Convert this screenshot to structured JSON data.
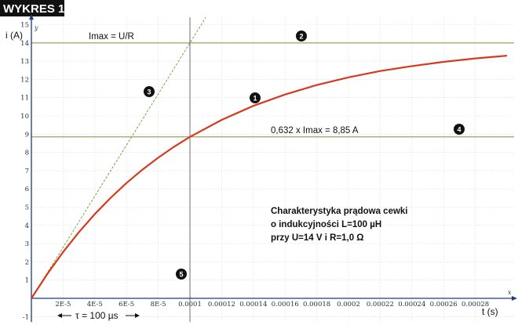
{
  "badge": "WYKRES 1",
  "chart_data": {
    "type": "line",
    "xlabel": "t (s)",
    "ylabel": "i (A)",
    "x_axis_letter": "x",
    "y_axis_letter": "y",
    "xlim": [
      0,
      0.0003
    ],
    "ylim": [
      -1.3,
      15.4
    ],
    "x_ticks": [
      2e-05,
      4e-05,
      6e-05,
      8e-05,
      0.0001,
      0.00012,
      0.00014,
      0.00016,
      0.00018,
      0.0002,
      0.00022,
      0.00024,
      0.00026,
      0.00028
    ],
    "x_tick_labels": [
      "2E-5",
      "4E-5",
      "6E-5",
      "8E-5",
      "0.0001",
      "0.00012",
      "0.00014",
      "0.00016",
      "0.00018",
      "0.0002",
      "0.00022",
      "0.00024",
      "0.00026",
      "0.00028"
    ],
    "y_ticks": [
      -1,
      1,
      2,
      3,
      4,
      5,
      6,
      7,
      8,
      9,
      10,
      11,
      12,
      13,
      14,
      15
    ],
    "y_tick_labels": [
      "-1",
      "1",
      "2",
      "3",
      "4",
      "5",
      "6",
      "7",
      "8",
      "9",
      "10",
      "11",
      "12",
      "13",
      "14",
      "15"
    ],
    "grid": true,
    "params": {
      "U": 14,
      "R": 1.0,
      "L": 0.0001,
      "tau": 0.0001
    },
    "series": [
      {
        "x": [
          0,
          1e-05,
          2e-05,
          3e-05,
          4e-05,
          5e-05,
          6e-05,
          7e-05,
          8e-05,
          9e-05,
          0.0001,
          0.00012,
          0.00014,
          0.00016,
          0.00018,
          0.0002,
          0.00022,
          0.00024,
          0.00026,
          0.00028,
          0.0003
        ],
        "values": [
          0,
          1.33,
          2.54,
          3.63,
          4.62,
          5.51,
          6.32,
          7.05,
          7.71,
          8.31,
          8.85,
          9.78,
          10.55,
          11.17,
          11.69,
          12.11,
          12.46,
          12.73,
          12.96,
          13.15,
          13.3
        ]
      }
    ],
    "annotations": {
      "imax_label": "Imax = U/R",
      "imax_value": 14,
      "level_label": "0,632 x Imax = 8,85 A",
      "level_value": 8.85,
      "tau_label": "τ = 100 µs",
      "description": [
        "Charakterystyka prądowa cewki",
        "o indukcyjności L=100 µH",
        "przy  U=14 V i R=1,0 Ω"
      ],
      "markers": [
        "1",
        "2",
        "3",
        "4",
        "5"
      ]
    }
  }
}
